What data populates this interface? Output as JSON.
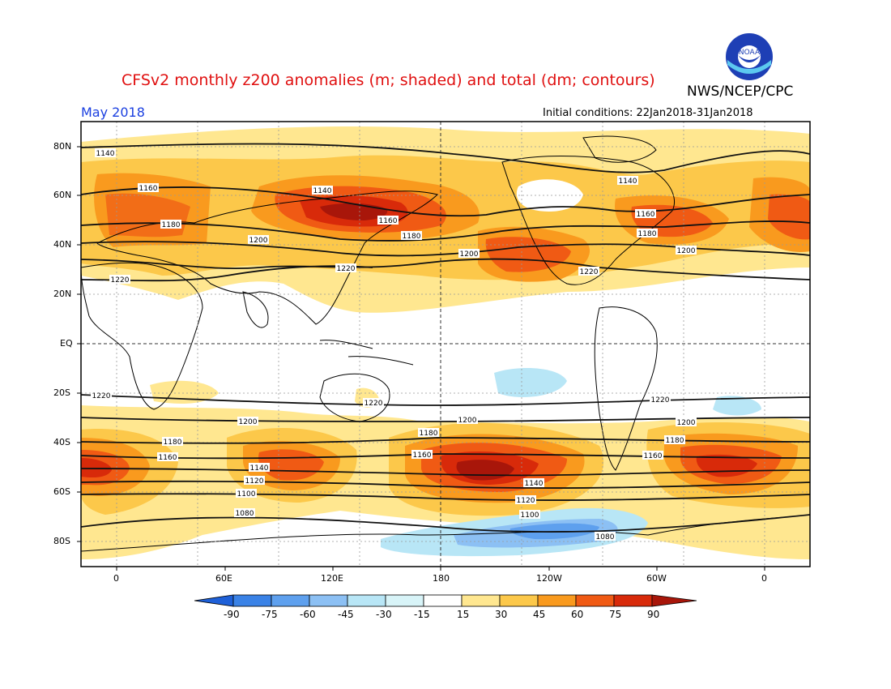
{
  "header": {
    "title": "CFSv2 monthly z200 anomalies (m; shaded) and total (dm; contours)",
    "agency": "NWS/NCEP/CPC",
    "month": "May 2018",
    "initial_conditions": "Initial conditions: 22Jan2018-31Jan2018",
    "logo_text": "NOAA"
  },
  "axes": {
    "lat_labels": [
      "80N",
      "60N",
      "40N",
      "20N",
      "EQ",
      "20S",
      "40S",
      "60S",
      "80S"
    ],
    "lon_labels": [
      "0",
      "60E",
      "120E",
      "180",
      "120W",
      "60W",
      "0"
    ]
  },
  "colorbar": {
    "labels": [
      "-90",
      "-75",
      "-60",
      "-45",
      "-30",
      "-15",
      "15",
      "30",
      "45",
      "60",
      "75",
      "90"
    ],
    "colors": [
      "#1e60d8",
      "#3a82e6",
      "#5ea0ee",
      "#8cc0f4",
      "#b8e6f6",
      "#ffffff",
      "#ffe790",
      "#fcc84a",
      "#f99a1e",
      "#f05a14",
      "#d82a0a",
      "#a8160a"
    ]
  },
  "contours": {
    "labels": [
      "1140",
      "1160",
      "1180",
      "1200",
      "1220",
      "1220",
      "1200",
      "1180",
      "1160",
      "1140",
      "1120",
      "1100",
      "1080"
    ]
  }
}
